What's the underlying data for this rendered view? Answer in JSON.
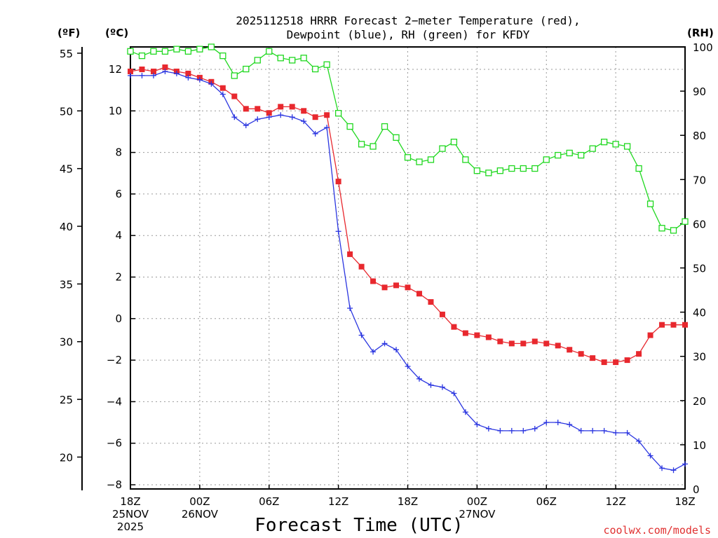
{
  "chart_data": {
    "type": "line",
    "title_line1": "2025112518 HRRR Forecast 2−meter Temperature (red),",
    "title_line2": "Dewpoint (blue), RH (green) for KFDY",
    "xlabel": "Forecast Time (UTC)",
    "credit": "coolwx.com/models",
    "unit_f": "(ºF)",
    "unit_c": "(ºC)",
    "unit_rh": "(RH)",
    "x_hours_range": [
      0,
      48
    ],
    "ylim_c": [
      -8.2,
      13.0
    ],
    "ylim_rh": [
      0,
      100
    ],
    "left_c_ticks": [
      {
        "v": 12,
        "t": "12"
      },
      {
        "v": 10,
        "t": "10"
      },
      {
        "v": 8,
        "t": "8"
      },
      {
        "v": 6,
        "t": "6"
      },
      {
        "v": 4,
        "t": "4"
      },
      {
        "v": 2,
        "t": "2"
      },
      {
        "v": 0,
        "t": "0"
      },
      {
        "v": -2,
        "t": "−2"
      },
      {
        "v": -4,
        "t": "−4"
      },
      {
        "v": -6,
        "t": "−6"
      },
      {
        "v": -8,
        "t": "−8"
      }
    ],
    "left_f_ticks": [
      {
        "v": 55,
        "t": "55"
      },
      {
        "v": 50,
        "t": "50"
      },
      {
        "v": 45,
        "t": "45"
      },
      {
        "v": 40,
        "t": "40"
      },
      {
        "v": 35,
        "t": "35"
      },
      {
        "v": 30,
        "t": "30"
      },
      {
        "v": 25,
        "t": "25"
      },
      {
        "v": 20,
        "t": "20"
      }
    ],
    "right_rh_ticks": [
      {
        "v": 100,
        "t": "100"
      },
      {
        "v": 90,
        "t": "90"
      },
      {
        "v": 80,
        "t": "80"
      },
      {
        "v": 70,
        "t": "70"
      },
      {
        "v": 60,
        "t": "60"
      },
      {
        "v": 50,
        "t": "50"
      },
      {
        "v": 40,
        "t": "40"
      },
      {
        "v": 30,
        "t": "30"
      },
      {
        "v": 20,
        "t": "20"
      },
      {
        "v": 10,
        "t": "10"
      },
      {
        "v": 0,
        "t": "0"
      }
    ],
    "x_ticks": [
      {
        "h": 0,
        "lines": [
          "18Z",
          "25NOV",
          "2025"
        ]
      },
      {
        "h": 6,
        "lines": [
          "00Z",
          "26NOV"
        ]
      },
      {
        "h": 12,
        "lines": [
          "06Z"
        ]
      },
      {
        "h": 18,
        "lines": [
          "12Z"
        ]
      },
      {
        "h": 24,
        "lines": [
          "18Z"
        ]
      },
      {
        "h": 30,
        "lines": [
          "00Z",
          "27NOV"
        ]
      },
      {
        "h": 36,
        "lines": [
          "06Z"
        ]
      },
      {
        "h": 42,
        "lines": [
          "12Z"
        ]
      },
      {
        "h": 48,
        "lines": [
          "18Z"
        ]
      }
    ],
    "colors": {
      "temp": "#e8282e",
      "dewpoint": "#2a35e0",
      "rh": "#20d820",
      "grid": "#999999",
      "credit": "#e03030"
    },
    "series": [
      {
        "name": "Temperature (°C)",
        "axis": "c",
        "color": "#e8282e",
        "values": [
          11.9,
          12.0,
          11.9,
          12.1,
          11.9,
          11.8,
          11.6,
          11.4,
          11.1,
          10.7,
          10.1,
          10.1,
          9.9,
          10.2,
          10.2,
          10.0,
          9.7,
          9.8,
          6.6,
          3.1,
          2.5,
          1.8,
          1.5,
          1.6,
          1.5,
          1.2,
          0.8,
          0.2,
          -0.4,
          -0.7,
          -0.8,
          -0.9,
          -1.1,
          -1.2,
          -1.2,
          -1.1,
          -1.2,
          -1.3,
          -1.5,
          -1.7,
          -1.9,
          -2.1,
          -2.1,
          -2.0,
          -1.7,
          -0.8,
          -0.3,
          -0.3,
          -0.3
        ]
      },
      {
        "name": "Dewpoint (°C)",
        "axis": "c",
        "color": "#2a35e0",
        "values": [
          11.7,
          11.7,
          11.7,
          11.9,
          11.8,
          11.6,
          11.5,
          11.3,
          10.8,
          9.7,
          9.3,
          9.6,
          9.7,
          9.8,
          9.7,
          9.5,
          8.9,
          9.2,
          4.2,
          0.5,
          -0.8,
          -1.6,
          -1.2,
          -1.5,
          -2.3,
          -2.9,
          -3.2,
          -3.3,
          -3.6,
          -4.5,
          -5.1,
          -5.3,
          -5.4,
          -5.4,
          -5.4,
          -5.3,
          -5.0,
          -5.0,
          -5.1,
          -5.4,
          -5.4,
          -5.4,
          -5.5,
          -5.5,
          -5.9,
          -6.6,
          -7.2,
          -7.3,
          -7.0
        ]
      },
      {
        "name": "RH (%)",
        "axis": "rh",
        "color": "#20d820",
        "values": [
          99,
          98,
          99,
          99,
          99.5,
          99,
          99.5,
          100,
          98,
          93.5,
          95,
          97,
          99,
          97.5,
          97,
          97.5,
          95,
          96,
          85,
          82,
          78,
          77.5,
          82,
          79.5,
          75,
          74,
          74.5,
          77,
          78.5,
          74.5,
          72,
          71.5,
          72,
          72.5,
          72.5,
          72.5,
          74.5,
          75.5,
          76,
          75.5,
          77,
          78.5,
          78,
          77.5,
          72.5,
          64.5,
          59,
          58.5,
          60.5
        ]
      }
    ]
  }
}
